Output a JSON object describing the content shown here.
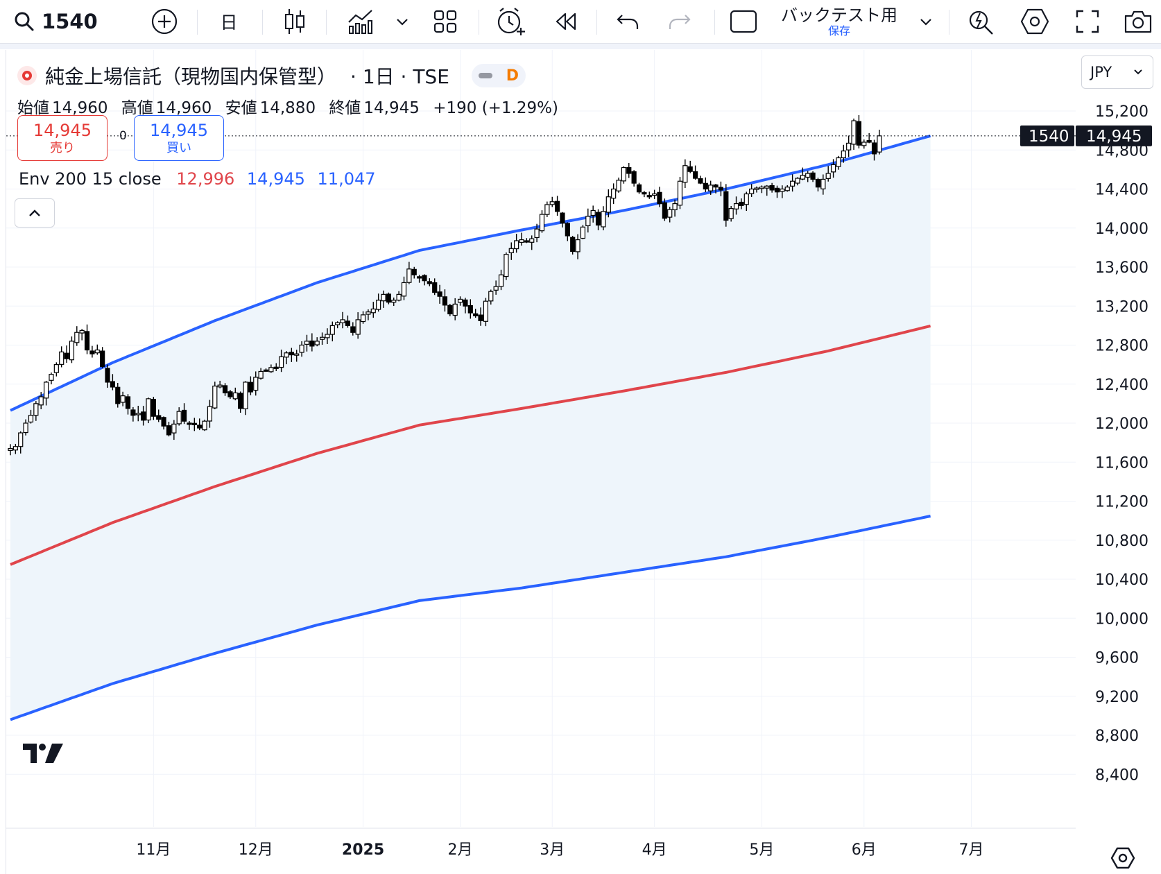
{
  "toolbar": {
    "symbol": "1540",
    "interval": "日",
    "backtest_title": "バックテスト用",
    "backtest_sub": "保存"
  },
  "legend": {
    "title": "純金上場信託（現物国内保管型）",
    "interval": "· 1日 · TSE",
    "toggle_letter": "D",
    "open_label": "始値",
    "open": "14,960",
    "high_label": "高値",
    "high": "14,960",
    "low_label": "安値",
    "low": "14,880",
    "close_label": "終値",
    "close": "14,945",
    "change": "+190 (+1.29%)"
  },
  "trade": {
    "sell_price": "14,945",
    "sell_label": "売り",
    "spread": "0",
    "buy_price": "14,945",
    "buy_label": "買い"
  },
  "indicator": {
    "label": "Env 200 15 close",
    "basis": "12,996",
    "upper": "14,945",
    "lower": "11,047"
  },
  "currency": "JPY",
  "price_tag": {
    "symbol": "1540",
    "price": "14,945"
  },
  "colors": {
    "upper_band": "#2962ff",
    "basis": "#e0454b",
    "lower_band": "#2962ff",
    "fill": "#eef5fb",
    "candle": "#000000"
  },
  "icons": [
    "search-icon",
    "plus-circle-icon",
    "candles-icon",
    "indicators-icon",
    "chevron-down-icon",
    "layout-grid-icon",
    "alert-clock-icon",
    "replay-icon",
    "undo-icon",
    "redo-icon",
    "layout-box-icon",
    "flash-search-icon",
    "settings-hex-icon",
    "fullscreen-icon",
    "camera-icon",
    "chevron-up-icon",
    "tradingview-logo",
    "settings-gear-icon"
  ],
  "chart_data": {
    "type": "candlestick",
    "title": "純金上場信託（現物国内保管型） · 1日 · TSE",
    "xlabel": "",
    "ylabel": "",
    "ylim": [
      8400,
      15400
    ],
    "y_ticks": [
      "15,200",
      "14,800",
      "14,400",
      "14,000",
      "13,600",
      "13,200",
      "12,800",
      "12,400",
      "12,000",
      "11,600",
      "11,200",
      "10,800",
      "10,400",
      "10,000",
      "9,600",
      "9,200",
      "8,800",
      "8,400"
    ],
    "x_ticks": [
      {
        "label": "11月",
        "bold": false,
        "index": 28
      },
      {
        "label": "12月",
        "bold": false,
        "index": 48
      },
      {
        "label": "2025",
        "bold": true,
        "index": 69
      },
      {
        "label": "2月",
        "bold": false,
        "index": 88
      },
      {
        "label": "3月",
        "bold": false,
        "index": 106
      },
      {
        "label": "4月",
        "bold": false,
        "index": 126
      },
      {
        "label": "5月",
        "bold": false,
        "index": 147
      },
      {
        "label": "6月",
        "bold": false,
        "index": 167
      },
      {
        "label": "7月",
        "bold": false,
        "index": 188
      }
    ],
    "series": [
      {
        "name": "upper",
        "kind": "line",
        "anchors": [
          [
            0,
            12130
          ],
          [
            20,
            12620
          ],
          [
            40,
            13050
          ],
          [
            60,
            13440
          ],
          [
            80,
            13770
          ],
          [
            100,
            13980
          ],
          [
            120,
            14180
          ],
          [
            140,
            14400
          ],
          [
            160,
            14650
          ],
          [
            180,
            14945
          ]
        ]
      },
      {
        "name": "basis",
        "kind": "line",
        "anchors": [
          [
            0,
            10550
          ],
          [
            20,
            10980
          ],
          [
            40,
            11350
          ],
          [
            60,
            11690
          ],
          [
            80,
            11980
          ],
          [
            100,
            12150
          ],
          [
            120,
            12330
          ],
          [
            140,
            12520
          ],
          [
            160,
            12740
          ],
          [
            180,
            12996
          ]
        ]
      },
      {
        "name": "lower",
        "kind": "line",
        "anchors": [
          [
            0,
            8960
          ],
          [
            20,
            9330
          ],
          [
            40,
            9640
          ],
          [
            60,
            9930
          ],
          [
            80,
            10180
          ],
          [
            100,
            10310
          ],
          [
            120,
            10470
          ],
          [
            140,
            10630
          ],
          [
            160,
            10830
          ],
          [
            180,
            11047
          ]
        ]
      }
    ],
    "candles_close": [
      11740,
      11760,
      11900,
      12000,
      12080,
      12200,
      12270,
      12420,
      12500,
      12600,
      12730,
      12660,
      12840,
      12930,
      12950,
      12750,
      12710,
      12750,
      12580,
      12420,
      12370,
      12200,
      12280,
      12150,
      12080,
      12100,
      12030,
      12250,
      12070,
      12040,
      11970,
      11880,
      11990,
      12120,
      12020,
      11990,
      11990,
      11950,
      12020,
      12170,
      12380,
      12390,
      12310,
      12270,
      12310,
      12150,
      12420,
      12320,
      12470,
      12530,
      12540,
      12570,
      12570,
      12680,
      12720,
      12700,
      12710,
      12800,
      12840,
      12790,
      12840,
      12880,
      12910,
      13000,
      13030,
      13060,
      13000,
      12930,
      13060,
      13110,
      13140,
      13170,
      13260,
      13320,
      13240,
      13260,
      13320,
      13440,
      13580,
      13520,
      13500,
      13460,
      13430,
      13340,
      13300,
      13210,
      13120,
      13220,
      13270,
      13200,
      13130,
      13100,
      13050,
      13250,
      13350,
      13400,
      13520,
      13730,
      13790,
      13870,
      13880,
      13860,
      13890,
      13990,
      14140,
      14240,
      14270,
      14170,
      14050,
      13920,
      13760,
      13880,
      14010,
      14120,
      14180,
      14030,
      14170,
      14320,
      14400,
      14490,
      14620,
      14560,
      14460,
      14370,
      14350,
      14330,
      14350,
      14250,
      14100,
      14190,
      14250,
      14480,
      14640,
      14580,
      14510,
      14460,
      14400,
      14440,
      14420,
      14390,
      14080,
      14200,
      14250,
      14230,
      14350,
      14400,
      14410,
      14420,
      14430,
      14390,
      14370,
      14400,
      14420,
      14480,
      14510,
      14540,
      14560,
      14500,
      14420,
      14500,
      14560,
      14650,
      14720,
      14790,
      14870,
      15100,
      14850,
      14880,
      14880,
      14760,
      14945
    ]
  }
}
